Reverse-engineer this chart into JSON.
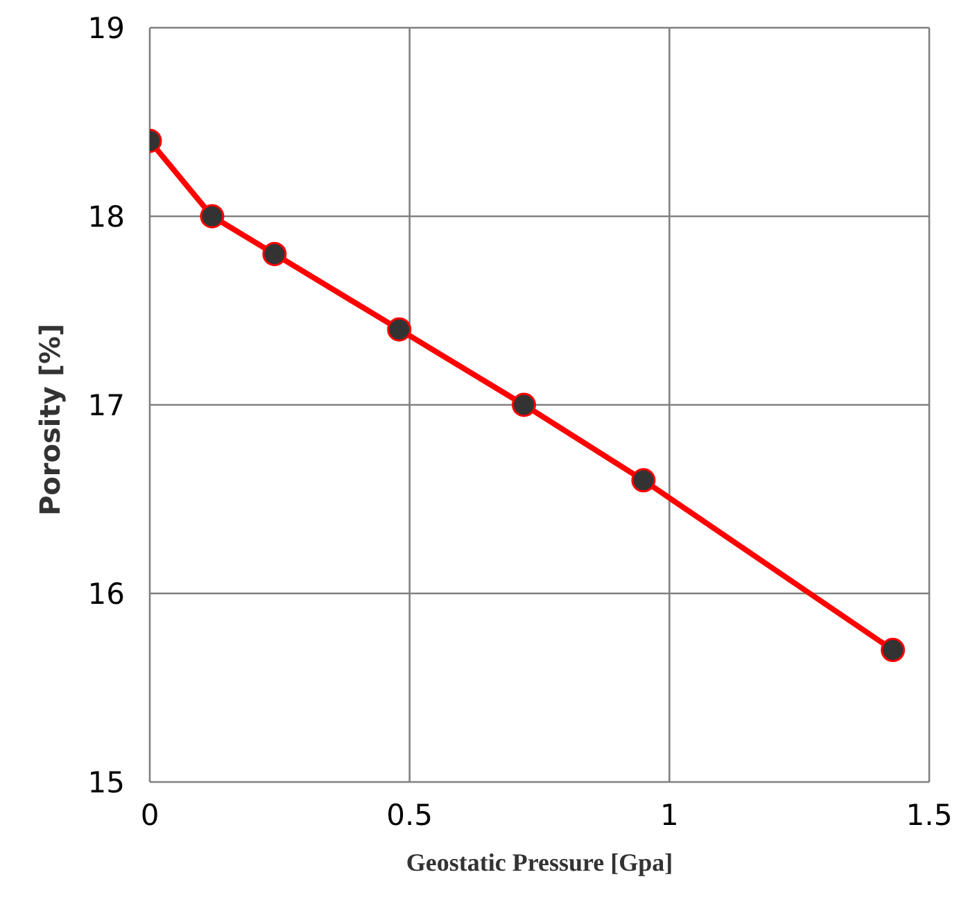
{
  "chart_data": {
    "type": "line",
    "xlabel": "Geostatic Pressure [Gpa]",
    "ylabel": "Porosity [%]",
    "x": [
      0,
      0.12,
      0.24,
      0.48,
      0.72,
      0.95,
      1.43
    ],
    "series": [
      {
        "color": "#ff0000",
        "values": [
          18.4,
          18.0,
          17.8,
          17.4,
          17.0,
          16.6,
          15.7
        ]
      }
    ],
    "xlim": [
      0,
      1.5
    ],
    "xticks": [
      0,
      0.5,
      1,
      1.5
    ],
    "ylim": [
      15,
      19
    ],
    "yticks": [
      15,
      16,
      17,
      18,
      19
    ],
    "grid": true,
    "marker": "circle",
    "line_style": "solid",
    "legend": false
  }
}
